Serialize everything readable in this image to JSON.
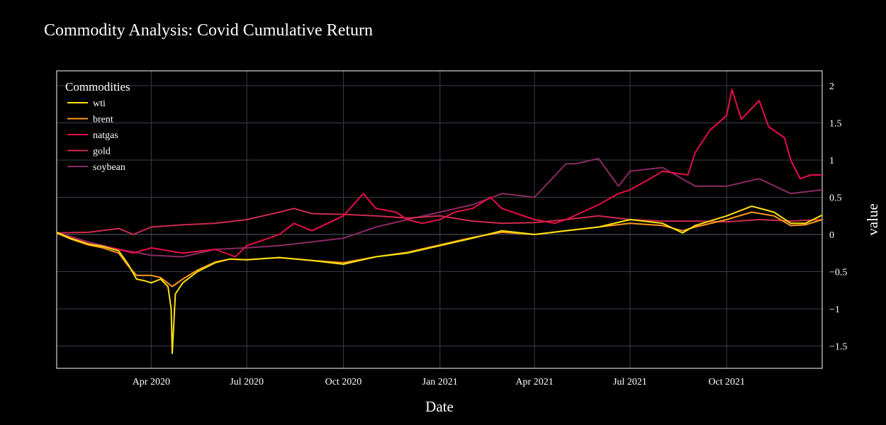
{
  "chart_data": {
    "type": "line",
    "title": "Commodity Analysis: Covid Cumulative Return",
    "xlabel": "Date",
    "ylabel": "value",
    "xlim": [
      "2020-01-02",
      "2021-12-31"
    ],
    "ylim": [
      -1.8,
      2.2
    ],
    "x_ticks": [
      {
        "date": "2020-04-01",
        "label": "Apr 2020"
      },
      {
        "date": "2020-07-01",
        "label": "Jul 2020"
      },
      {
        "date": "2020-10-01",
        "label": "Oct 2020"
      },
      {
        "date": "2021-01-01",
        "label": "Jan 2021"
      },
      {
        "date": "2021-04-01",
        "label": "Apr 2021"
      },
      {
        "date": "2021-07-01",
        "label": "Jul 2021"
      },
      {
        "date": "2021-10-01",
        "label": "Oct 2021"
      }
    ],
    "y_ticks": [
      {
        "value": 2,
        "label": "2"
      },
      {
        "value": 1.5,
        "label": "1.5"
      },
      {
        "value": 1,
        "label": "1"
      },
      {
        "value": 0.5,
        "label": "0.5"
      },
      {
        "value": 0,
        "label": "0"
      },
      {
        "value": -0.5,
        "label": "−0.5"
      },
      {
        "value": -1,
        "label": "−1"
      },
      {
        "value": -1.5,
        "label": "−1.5"
      }
    ],
    "y_axis_side": "right",
    "grid": true,
    "legend": {
      "title": "Commodities",
      "position": "top-left"
    },
    "series": [
      {
        "name": "wti",
        "color": "#ffe20d",
        "x": [
          "2020-01-02",
          "2020-01-15",
          "2020-02-01",
          "2020-02-15",
          "2020-03-01",
          "2020-03-10",
          "2020-03-18",
          "2020-03-25",
          "2020-04-01",
          "2020-04-10",
          "2020-04-17",
          "2020-04-20",
          "2020-04-21",
          "2020-04-24",
          "2020-05-01",
          "2020-05-15",
          "2020-06-01",
          "2020-06-15",
          "2020-07-01",
          "2020-08-01",
          "2020-09-01",
          "2020-10-01",
          "2020-11-01",
          "2020-12-01",
          "2021-01-01",
          "2021-02-01",
          "2021-03-01",
          "2021-04-01",
          "2021-05-01",
          "2021-06-01",
          "2021-07-01",
          "2021-08-01",
          "2021-08-20",
          "2021-09-01",
          "2021-10-01",
          "2021-10-25",
          "2021-11-15",
          "2021-12-01",
          "2021-12-15",
          "2021-12-31"
        ],
        "values": [
          0.03,
          -0.05,
          -0.13,
          -0.16,
          -0.22,
          -0.4,
          -0.6,
          -0.62,
          -0.65,
          -0.6,
          -0.7,
          -1.0,
          -1.6,
          -0.8,
          -0.65,
          -0.5,
          -0.38,
          -0.33,
          -0.34,
          -0.31,
          -0.35,
          -0.4,
          -0.3,
          -0.25,
          -0.15,
          -0.05,
          0.05,
          0.0,
          0.05,
          0.1,
          0.2,
          0.15,
          0.02,
          0.12,
          0.25,
          0.38,
          0.3,
          0.15,
          0.15,
          0.26
        ]
      },
      {
        "name": "brent",
        "color": "#ff9a1a",
        "x": [
          "2020-01-02",
          "2020-01-15",
          "2020-02-01",
          "2020-02-15",
          "2020-03-01",
          "2020-03-10",
          "2020-03-18",
          "2020-03-25",
          "2020-04-01",
          "2020-04-10",
          "2020-04-21",
          "2020-05-01",
          "2020-05-15",
          "2020-06-01",
          "2020-06-15",
          "2020-07-01",
          "2020-08-01",
          "2020-09-01",
          "2020-10-01",
          "2020-11-01",
          "2020-12-01",
          "2021-01-01",
          "2021-02-01",
          "2021-03-01",
          "2021-04-01",
          "2021-05-01",
          "2021-06-01",
          "2021-07-01",
          "2021-08-01",
          "2021-08-20",
          "2021-09-01",
          "2021-10-01",
          "2021-10-25",
          "2021-11-15",
          "2021-12-01",
          "2021-12-15",
          "2021-12-31"
        ],
        "values": [
          0.02,
          -0.06,
          -0.14,
          -0.18,
          -0.25,
          -0.42,
          -0.55,
          -0.55,
          -0.55,
          -0.58,
          -0.7,
          -0.6,
          -0.48,
          -0.37,
          -0.33,
          -0.34,
          -0.31,
          -0.35,
          -0.38,
          -0.3,
          -0.24,
          -0.14,
          -0.04,
          0.03,
          0.0,
          0.05,
          0.1,
          0.15,
          0.12,
          0.05,
          0.1,
          0.2,
          0.3,
          0.25,
          0.12,
          0.13,
          0.2
        ]
      },
      {
        "name": "natgas",
        "color": "#e80d48",
        "x": [
          "2020-01-02",
          "2020-02-01",
          "2020-03-01",
          "2020-03-15",
          "2020-04-01",
          "2020-05-01",
          "2020-06-01",
          "2020-06-20",
          "2020-07-01",
          "2020-08-01",
          "2020-08-15",
          "2020-09-01",
          "2020-10-01",
          "2020-10-20",
          "2020-11-01",
          "2020-11-20",
          "2020-12-01",
          "2020-12-15",
          "2021-01-01",
          "2021-01-15",
          "2021-02-01",
          "2021-02-18",
          "2021-03-01",
          "2021-04-01",
          "2021-04-20",
          "2021-05-01",
          "2021-06-01",
          "2021-06-20",
          "2021-07-01",
          "2021-07-20",
          "2021-08-01",
          "2021-08-25",
          "2021-09-01",
          "2021-09-15",
          "2021-10-01",
          "2021-10-06",
          "2021-10-15",
          "2021-11-01",
          "2021-11-10",
          "2021-11-25",
          "2021-12-01",
          "2021-12-10",
          "2021-12-20",
          "2021-12-31"
        ],
        "values": [
          0.02,
          -0.12,
          -0.2,
          -0.25,
          -0.18,
          -0.25,
          -0.2,
          -0.3,
          -0.15,
          0.0,
          0.15,
          0.05,
          0.25,
          0.55,
          0.35,
          0.3,
          0.2,
          0.15,
          0.2,
          0.3,
          0.35,
          0.5,
          0.35,
          0.2,
          0.15,
          0.2,
          0.4,
          0.55,
          0.6,
          0.75,
          0.85,
          0.8,
          1.1,
          1.4,
          1.6,
          1.95,
          1.55,
          1.8,
          1.45,
          1.3,
          1.0,
          0.75,
          0.8,
          0.8
        ]
      },
      {
        "name": "gold",
        "color": "#cf2a4e",
        "x": [
          "2020-01-02",
          "2020-02-01",
          "2020-03-01",
          "2020-03-15",
          "2020-04-01",
          "2020-05-01",
          "2020-06-01",
          "2020-07-01",
          "2020-08-01",
          "2020-08-15",
          "2020-09-01",
          "2020-10-01",
          "2020-11-01",
          "2020-12-01",
          "2021-01-01",
          "2021-02-01",
          "2021-03-01",
          "2021-04-01",
          "2021-05-01",
          "2021-06-01",
          "2021-07-01",
          "2021-08-01",
          "2021-09-01",
          "2021-10-01",
          "2021-11-01",
          "2021-12-01",
          "2021-12-31"
        ],
        "values": [
          0.02,
          0.03,
          0.08,
          0.0,
          0.1,
          0.13,
          0.15,
          0.2,
          0.3,
          0.35,
          0.28,
          0.27,
          0.25,
          0.22,
          0.25,
          0.18,
          0.15,
          0.16,
          0.2,
          0.25,
          0.2,
          0.18,
          0.18,
          0.17,
          0.2,
          0.18,
          0.2
        ]
      },
      {
        "name": "soybean",
        "color": "#8b2a66",
        "x": [
          "2020-01-02",
          "2020-02-01",
          "2020-03-01",
          "2020-04-01",
          "2020-05-01",
          "2020-06-01",
          "2020-07-01",
          "2020-08-01",
          "2020-09-01",
          "2020-10-01",
          "2020-11-01",
          "2020-12-01",
          "2021-01-01",
          "2021-02-01",
          "2021-03-01",
          "2021-04-01",
          "2021-05-01",
          "2021-05-10",
          "2021-06-01",
          "2021-06-20",
          "2021-07-01",
          "2021-08-01",
          "2021-09-01",
          "2021-10-01",
          "2021-11-01",
          "2021-12-01",
          "2021-12-31"
        ],
        "values": [
          0.03,
          -0.1,
          -0.2,
          -0.28,
          -0.3,
          -0.2,
          -0.18,
          -0.15,
          -0.1,
          -0.05,
          0.1,
          0.2,
          0.3,
          0.4,
          0.55,
          0.5,
          0.95,
          0.95,
          1.02,
          0.65,
          0.85,
          0.9,
          0.65,
          0.65,
          0.75,
          0.55,
          0.6
        ]
      }
    ]
  }
}
